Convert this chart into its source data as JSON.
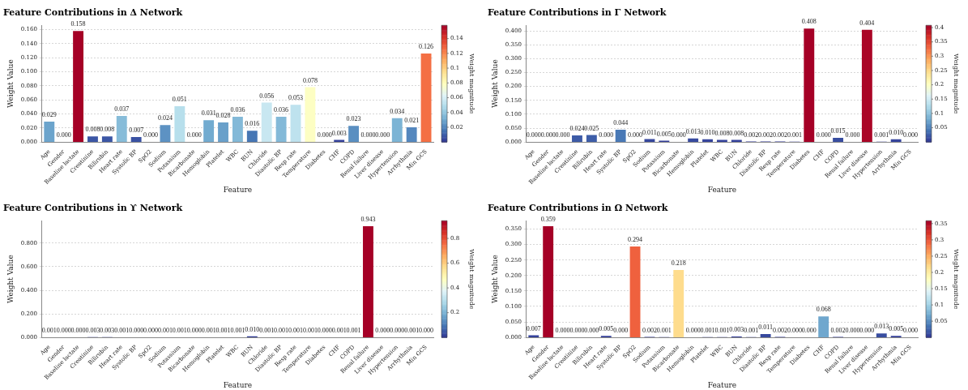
{
  "chart_data": [
    {
      "type": "bar",
      "title": "Feature Contributions in Δ Network",
      "xlabel": "Feature",
      "ylabel": "Weight Value",
      "clabel": "Weight magnitude",
      "categories": [
        "Age",
        "Gender",
        "Baseline lactate",
        "Creatinine",
        "Bilirubin",
        "Heart rate",
        "Systolic BP",
        "SpO2",
        "Sodium",
        "Potassium",
        "Bicarbonate",
        "Hemoglobin",
        "Platelet",
        "WBC",
        "BUN",
        "Chloride",
        "Diastolic BP",
        "Resp rate",
        "Temperature",
        "Diabetes",
        "CHF",
        "COPD",
        "Renal failure",
        "Liver disease",
        "Hypertension",
        "Arrhythmia",
        "Min GCS"
      ],
      "values": [
        0.029,
        0.0,
        0.158,
        0.008,
        0.008,
        0.037,
        0.007,
        0.0,
        0.024,
        0.051,
        0.0,
        0.031,
        0.028,
        0.036,
        0.016,
        0.056,
        0.036,
        0.053,
        0.078,
        0.0,
        0.003,
        0.023,
        0.0,
        0.0,
        0.034,
        0.021,
        0.126
      ],
      "value_labels": [
        "0.029",
        "0.000",
        "0.158",
        "0.008",
        "0.008",
        "0.037",
        "0.007",
        "0.000",
        "0.024",
        "0.051",
        "0.000",
        "0.031",
        "0.028",
        "0.036",
        "0.016",
        "0.056",
        "0.036",
        "0.053",
        "0.078",
        "0.000",
        "0.003",
        "0.023",
        "0.000",
        "0.000",
        "0.034",
        "0.021",
        "0.126"
      ],
      "ylim": [
        0,
        0.166
      ],
      "yticks": [
        {
          "value": 0,
          "label": "0.000"
        },
        {
          "value": 0.02,
          "label": "0.020"
        },
        {
          "value": 0.04,
          "label": "0.040"
        },
        {
          "value": 0.06,
          "label": "0.060"
        },
        {
          "value": 0.08,
          "label": "0.080"
        },
        {
          "value": 0.1,
          "label": "0.100"
        },
        {
          "value": 0.12,
          "label": "0.120"
        },
        {
          "value": 0.14,
          "label": "0.140"
        },
        {
          "value": 0.16,
          "label": "0.160"
        }
      ],
      "clim": [
        0,
        0.158
      ],
      "cticks": [
        0.02,
        0.04,
        0.06,
        0.08,
        0.1,
        0.12,
        0.14
      ],
      "grid": "y"
    },
    {
      "type": "bar",
      "title": "Feature Contributions in Γ Network",
      "xlabel": "Feature",
      "ylabel": "Weight Value",
      "clabel": "Weight magnitude",
      "categories": [
        "Age",
        "Gender",
        "Baseline lactate",
        "Creatinine",
        "Bilirubin",
        "Heart rate",
        "Systolic BP",
        "SpO2",
        "Sodium",
        "Potassium",
        "Bicarbonate",
        "Hemoglobin",
        "Platelet",
        "WBC",
        "BUN",
        "Chloride",
        "Diastolic BP",
        "Resp rate",
        "Temperature",
        "Diabetes",
        "CHF",
        "COPD",
        "Renal failure",
        "Liver disease",
        "Hypertension",
        "Arrhythmia",
        "Min GCS"
      ],
      "values": [
        0.0,
        0.0,
        0.0,
        0.024,
        0.025,
        0.0,
        0.044,
        0.0,
        0.011,
        0.005,
        0.0,
        0.013,
        0.01,
        0.008,
        0.008,
        0.002,
        0.002,
        0.002,
        0.001,
        0.408,
        0.0,
        0.015,
        0.0,
        0.404,
        0.001,
        0.01,
        0.0
      ],
      "value_labels": [
        "0.000",
        "0.000",
        "0.000",
        "0.024",
        "0.025",
        "0.000",
        "0.044",
        "0.000",
        "0.011",
        "0.005",
        "0.000",
        "0.013",
        "0.010",
        "0.008",
        "0.008",
        "0.002",
        "0.002",
        "0.002",
        "0.001",
        "0.408",
        "0.000",
        "0.015",
        "0.000",
        "0.404",
        "0.001",
        "0.010",
        "0.000"
      ],
      "ylim": [
        0,
        0.42
      ],
      "yticks": [
        {
          "value": 0,
          "label": "0.000"
        },
        {
          "value": 0.05,
          "label": "0.050"
        },
        {
          "value": 0.1,
          "label": "0.100"
        },
        {
          "value": 0.15,
          "label": "0.150"
        },
        {
          "value": 0.2,
          "label": "0.200"
        },
        {
          "value": 0.25,
          "label": "0.250"
        },
        {
          "value": 0.3,
          "label": "0.300"
        },
        {
          "value": 0.35,
          "label": "0.350"
        },
        {
          "value": 0.4,
          "label": "0.400"
        }
      ],
      "clim": [
        0,
        0.408
      ],
      "cticks": [
        0.05,
        0.1,
        0.15,
        0.2,
        0.25,
        0.3,
        0.35,
        0.4
      ],
      "grid": "y"
    },
    {
      "type": "bar",
      "title": "Feature Contributions in ϒ Network",
      "xlabel": "Feature",
      "ylabel": "Weight Value",
      "clabel": "Weight magnitude",
      "categories": [
        "Age",
        "Gender",
        "Baseline lactate",
        "Creatinine",
        "Bilirubin",
        "Heart rate",
        "Systolic BP",
        "SpO2",
        "Sodium",
        "Potassium",
        "Bicarbonate",
        "Hemoglobin",
        "Platelet",
        "WBC",
        "BUN",
        "Chloride",
        "Diastolic BP",
        "Resp rate",
        "Temperature",
        "Diabetes",
        "CHF",
        "COPD",
        "Renal failure",
        "Liver disease",
        "Hypertension",
        "Arrhythmia",
        "Min GCS"
      ],
      "values": [
        0.001,
        0.0,
        0.0,
        0.003,
        0.003,
        0.001,
        0.0,
        0.0,
        0.001,
        0.001,
        0.0,
        0.001,
        0.001,
        0.001,
        0.01,
        0.001,
        0.001,
        0.001,
        0.001,
        0.0,
        0.001,
        0.001,
        0.943,
        0.0,
        0.0,
        0.001,
        0.0
      ],
      "value_labels": [
        "0.001",
        "0.000",
        "0.000",
        "0.003",
        "0.003",
        "0.001",
        "0.000",
        "0.000",
        "0.001",
        "0.001",
        "0.000",
        "0.001",
        "0.001",
        "0.001",
        "0.010",
        "0.001",
        "0.001",
        "0.001",
        "0.001",
        "0.000",
        "0.001",
        "0.001",
        "0.943",
        "0.000",
        "0.000",
        "0.001",
        "0.000"
      ],
      "ylim": [
        0,
        0.99
      ],
      "yticks": [
        {
          "value": 0,
          "label": "0.000"
        },
        {
          "value": 0.2,
          "label": "0.200"
        },
        {
          "value": 0.4,
          "label": "0.400"
        },
        {
          "value": 0.6,
          "label": "0.600"
        },
        {
          "value": 0.8,
          "label": "0.800"
        }
      ],
      "clim": [
        0,
        0.943
      ],
      "cticks": [
        0.2,
        0.4,
        0.6,
        0.8
      ],
      "grid": "y"
    },
    {
      "type": "bar",
      "title": "Feature Contributions in Ω Network",
      "xlabel": "Feature",
      "ylabel": "Weight Value",
      "clabel": "Weight magnitude",
      "categories": [
        "Age",
        "Gender",
        "Baseline lactate",
        "Creatinine",
        "Bilirubin",
        "Heart rate",
        "Systolic BP",
        "SpO2",
        "Sodium",
        "Potassium",
        "Bicarbonate",
        "Hemoglobin",
        "Platelet",
        "WBC",
        "BUN",
        "Chloride",
        "Diastolic BP",
        "Resp rate",
        "Temperature",
        "Diabetes",
        "CHF",
        "COPD",
        "Renal failure",
        "Liver disease",
        "Hypertension",
        "Arrhythmia",
        "Min GCS"
      ],
      "values": [
        0.007,
        0.359,
        0.0,
        0.0,
        0.0,
        0.005,
        0.0,
        0.294,
        0.002,
        0.001,
        0.218,
        0.0,
        0.001,
        0.001,
        0.003,
        0.001,
        0.011,
        0.002,
        0.0,
        0.0,
        0.068,
        0.002,
        0.0,
        0.0,
        0.013,
        0.005,
        0.0
      ],
      "value_labels": [
        "0.007",
        "0.359",
        "0.000",
        "0.000",
        "0.000",
        "0.005",
        "0.000",
        "0.294",
        "0.002",
        "0.001",
        "0.218",
        "0.000",
        "0.001",
        "0.001",
        "0.003",
        "0.001",
        "0.011",
        "0.002",
        "0.000",
        "0.000",
        "0.068",
        "0.002",
        "0.000",
        "0.000",
        "0.013",
        "0.005",
        "0.000"
      ],
      "ylim": [
        0,
        0.377
      ],
      "yticks": [
        {
          "value": 0,
          "label": "0.000"
        },
        {
          "value": 0.05,
          "label": "0.050"
        },
        {
          "value": 0.1,
          "label": "0.100"
        },
        {
          "value": 0.15,
          "label": "0.150"
        },
        {
          "value": 0.2,
          "label": "0.200"
        },
        {
          "value": 0.25,
          "label": "0.250"
        },
        {
          "value": 0.3,
          "label": "0.300"
        },
        {
          "value": 0.35,
          "label": "0.350"
        }
      ],
      "clim": [
        0,
        0.359
      ],
      "cticks": [
        0.05,
        0.1,
        0.15,
        0.2,
        0.25,
        0.3,
        0.35
      ],
      "grid": "y"
    }
  ]
}
